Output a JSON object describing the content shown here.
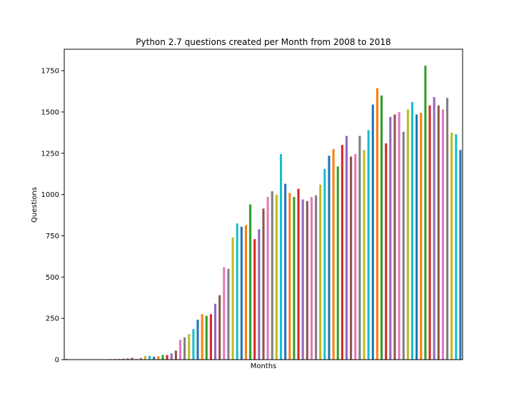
{
  "chart_data": {
    "type": "bar",
    "title": "Python 2.7 questions created per Month from 2008 to 2018",
    "xlabel": "Months",
    "ylabel": "Questions",
    "ylim": [
      0,
      1880
    ],
    "yticks": [
      0,
      250,
      500,
      750,
      1000,
      1250,
      1500,
      1750
    ],
    "grid": false,
    "legend": "none",
    "palette": [
      "#1f77b4",
      "#ff7f0e",
      "#2ca02c",
      "#d62728",
      "#9467bd",
      "#8c564b",
      "#e377c2",
      "#7f7f7f",
      "#bcbd22",
      "#17becf"
    ],
    "values": [
      4,
      0,
      0,
      0,
      0,
      0,
      0,
      0,
      0,
      2,
      3,
      4,
      4,
      5,
      8,
      11,
      5,
      10,
      22,
      23,
      18,
      21,
      28,
      28,
      38,
      55,
      120,
      135,
      155,
      185,
      242,
      275,
      265,
      275,
      338,
      390,
      560,
      550,
      740,
      825,
      805,
      815,
      940,
      730,
      790,
      915,
      985,
      1020,
      1000,
      1245,
      1065,
      1010,
      985,
      1035,
      970,
      960,
      985,
      995,
      1060,
      1155,
      1235,
      1275,
      1170,
      1300,
      1355,
      1230,
      1245,
      1355,
      1270,
      1390,
      1545,
      1645,
      1600,
      1310,
      1470,
      1485,
      1500,
      1380,
      1515,
      1560,
      1485,
      1495,
      1780,
      1540,
      1590,
      1540,
      1515,
      1585,
      1375,
      1365,
      1270
    ]
  }
}
